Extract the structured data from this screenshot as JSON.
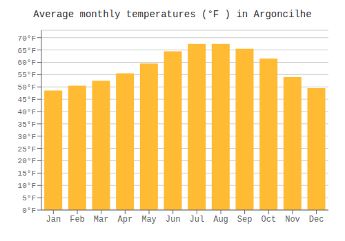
{
  "chart_data": {
    "type": "bar",
    "title": "Average monthly temperatures (°F ) in Argoncilhe",
    "categories": [
      "Jan",
      "Feb",
      "Mar",
      "Apr",
      "May",
      "Jun",
      "Jul",
      "Aug",
      "Sep",
      "Oct",
      "Nov",
      "Dec"
    ],
    "values": [
      48.5,
      50.5,
      52.5,
      55.5,
      59.5,
      64.5,
      67.5,
      67.5,
      65.5,
      61.5,
      54.0,
      49.5
    ],
    "color": "#FFBB33",
    "ylim": [
      0,
      73
    ],
    "yticks": [
      {
        "value": 0,
        "label": "0°F"
      },
      {
        "value": 5,
        "label": "5°F"
      },
      {
        "value": 10,
        "label": "10°F"
      },
      {
        "value": 15,
        "label": "15°F"
      },
      {
        "value": 20,
        "label": "20°F"
      },
      {
        "value": 25,
        "label": "25°F"
      },
      {
        "value": 30,
        "label": "30°F"
      },
      {
        "value": 35,
        "label": "35°F"
      },
      {
        "value": 40,
        "label": "40°F"
      },
      {
        "value": 45,
        "label": "45°F"
      },
      {
        "value": 50,
        "label": "50°F"
      },
      {
        "value": 55,
        "label": "55°F"
      },
      {
        "value": 60,
        "label": "60°F"
      },
      {
        "value": 65,
        "label": "65°F"
      },
      {
        "value": 70,
        "label": "70°F"
      }
    ],
    "grid": true
  }
}
